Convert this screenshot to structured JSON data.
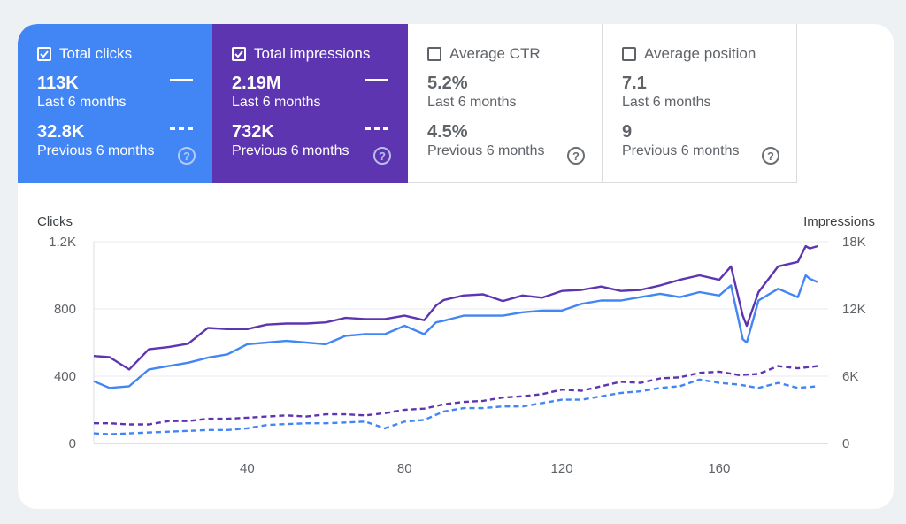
{
  "metrics": [
    {
      "label": "Total clicks",
      "checked": true,
      "value": "113K",
      "value_caption": "Last 6 months",
      "prev_value": "32.8K",
      "prev_caption": "Previous 6 months",
      "color": "#4285f4"
    },
    {
      "label": "Total impressions",
      "checked": true,
      "value": "2.19M",
      "value_caption": "Last 6 months",
      "prev_value": "732K",
      "prev_caption": "Previous 6 months",
      "color": "#5e35b1"
    },
    {
      "label": "Average CTR",
      "checked": false,
      "value": "5.2%",
      "value_caption": "Last 6 months",
      "prev_value": "4.5%",
      "prev_caption": "Previous 6 months"
    },
    {
      "label": "Average position",
      "checked": false,
      "value": "7.1",
      "value_caption": "Last 6 months",
      "prev_value": "9",
      "prev_caption": "Previous 6 months"
    }
  ],
  "help_glyph": "?",
  "chart_data": {
    "type": "line",
    "ylabel_left": "Clicks",
    "ylabel_right": "Impressions",
    "x_range": [
      1,
      185
    ],
    "x_ticks": [
      "40",
      "80",
      "120",
      "160"
    ],
    "x_tick_values": [
      40,
      80,
      120,
      160
    ],
    "ylim_left": [
      0,
      1200
    ],
    "ylim_right": [
      0,
      18000
    ],
    "left_ticks": [
      "0",
      "400",
      "800",
      "1.2K"
    ],
    "left_tick_values": [
      0,
      400,
      800,
      1200
    ],
    "right_ticks": [
      "0",
      "6K",
      "12K",
      "18K"
    ],
    "right_tick_values": [
      0,
      6000,
      12000,
      18000
    ],
    "grid": true,
    "series": [
      {
        "name": "Total impressions",
        "period": "Last 6 months",
        "axis": "right",
        "style": "solid",
        "color": "#5e35b1",
        "x": [
          1,
          5,
          10,
          15,
          20,
          25,
          30,
          35,
          40,
          45,
          50,
          55,
          60,
          65,
          70,
          75,
          80,
          85,
          88,
          90,
          95,
          100,
          105,
          110,
          115,
          120,
          125,
          130,
          135,
          140,
          145,
          150,
          155,
          160,
          163,
          166,
          167,
          170,
          175,
          180,
          182,
          183,
          185
        ],
        "values": [
          7800,
          7700,
          6600,
          8400,
          8600,
          8900,
          10300,
          10200,
          10200,
          10600,
          10700,
          10700,
          10800,
          11200,
          11100,
          11100,
          11400,
          11000,
          12300,
          12800,
          13200,
          13300,
          12700,
          13200,
          13000,
          13600,
          13700,
          14000,
          13600,
          13700,
          14100,
          14600,
          15000,
          14600,
          15800,
          11400,
          10500,
          13500,
          15800,
          16200,
          17600,
          17400,
          17600
        ]
      },
      {
        "name": "Total clicks",
        "period": "Last 6 months",
        "axis": "left",
        "style": "solid",
        "color": "#4285f4",
        "x": [
          1,
          5,
          10,
          15,
          20,
          25,
          30,
          35,
          40,
          45,
          50,
          55,
          60,
          65,
          70,
          75,
          80,
          85,
          88,
          90,
          95,
          100,
          105,
          110,
          115,
          120,
          125,
          130,
          135,
          140,
          145,
          150,
          155,
          160,
          163,
          166,
          167,
          170,
          175,
          180,
          182,
          183,
          185
        ],
        "values": [
          370,
          330,
          340,
          440,
          460,
          480,
          510,
          530,
          590,
          600,
          610,
          600,
          590,
          640,
          650,
          650,
          700,
          650,
          720,
          730,
          760,
          760,
          760,
          780,
          790,
          790,
          830,
          850,
          850,
          870,
          890,
          870,
          900,
          880,
          940,
          620,
          600,
          850,
          920,
          870,
          1000,
          980,
          960
        ]
      },
      {
        "name": "Total impressions",
        "period": "Previous 6 months",
        "axis": "right",
        "style": "dashed",
        "color": "#5e35b1",
        "x": [
          1,
          5,
          10,
          15,
          20,
          25,
          30,
          35,
          40,
          45,
          50,
          55,
          60,
          65,
          70,
          75,
          80,
          85,
          90,
          95,
          100,
          105,
          110,
          115,
          120,
          125,
          130,
          135,
          140,
          145,
          150,
          155,
          160,
          165,
          170,
          175,
          180,
          185
        ],
        "values": [
          1800,
          1800,
          1700,
          1700,
          2000,
          2000,
          2200,
          2200,
          2300,
          2400,
          2500,
          2400,
          2600,
          2600,
          2500,
          2700,
          3000,
          3100,
          3500,
          3700,
          3800,
          4100,
          4200,
          4400,
          4800,
          4700,
          5100,
          5500,
          5400,
          5800,
          5900,
          6300,
          6400,
          6100,
          6200,
          6900,
          6700,
          6900
        ]
      },
      {
        "name": "Total clicks",
        "period": "Previous 6 months",
        "axis": "left",
        "style": "dashed",
        "color": "#4285f4",
        "x": [
          1,
          5,
          10,
          15,
          20,
          25,
          30,
          35,
          40,
          45,
          50,
          55,
          60,
          65,
          70,
          75,
          80,
          85,
          90,
          95,
          100,
          105,
          110,
          115,
          120,
          125,
          130,
          135,
          140,
          145,
          150,
          155,
          160,
          165,
          170,
          175,
          180,
          185
        ],
        "values": [
          60,
          55,
          60,
          65,
          70,
          75,
          80,
          80,
          90,
          110,
          115,
          120,
          120,
          125,
          130,
          90,
          130,
          140,
          190,
          210,
          210,
          220,
          220,
          240,
          260,
          260,
          280,
          300,
          310,
          330,
          340,
          380,
          360,
          350,
          330,
          360,
          330,
          340
        ]
      }
    ]
  }
}
